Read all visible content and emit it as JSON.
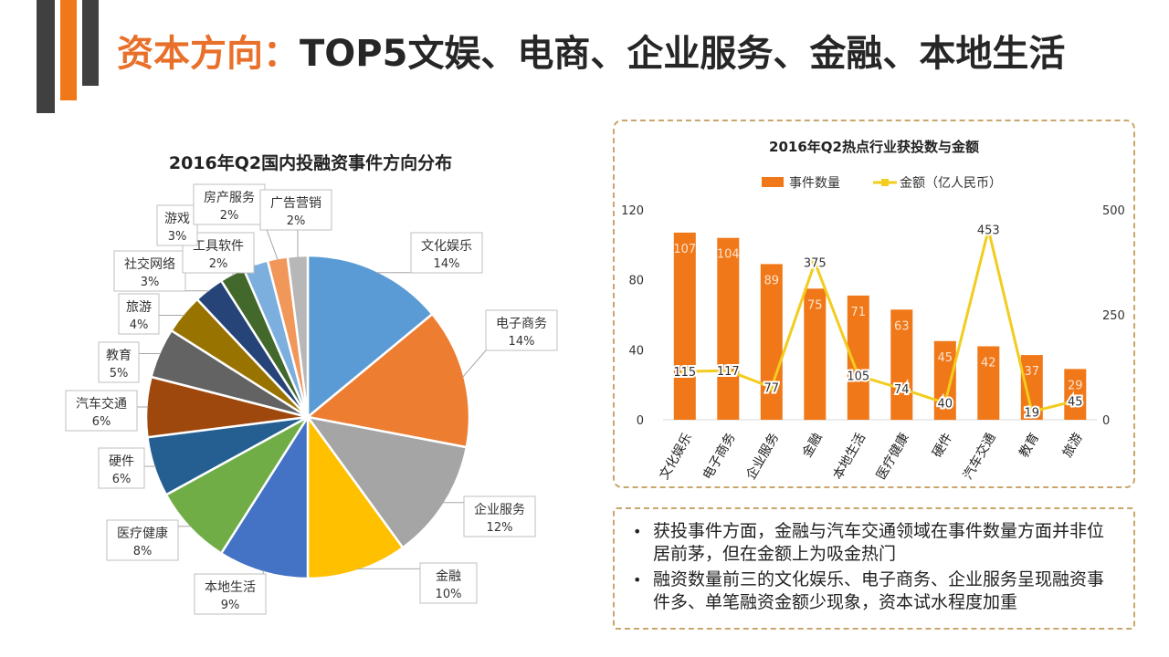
{
  "header": {
    "title_highlight": "资本方向：",
    "title_rest": "TOP5文娱、电商、企业服务、金融、本地生活"
  },
  "colors": {
    "accent": "#f07818",
    "dark": "#404040",
    "line": "#f2cc1e",
    "border": "#c9a66b"
  },
  "chart_data": [
    {
      "type": "pie",
      "title": "2016年Q2国内投融资事件方向分布",
      "slices": [
        {
          "label": "文化娱乐",
          "pct_label": "14%",
          "value": 14,
          "color": "#5b9bd5"
        },
        {
          "label": "电子商务",
          "pct_label": "14%",
          "value": 14,
          "color": "#ed7d31"
        },
        {
          "label": "企业服务",
          "pct_label": "12%",
          "value": 12,
          "color": "#a5a5a5"
        },
        {
          "label": "金融",
          "pct_label": "10%",
          "value": 10,
          "color": "#ffc000"
        },
        {
          "label": "本地生活",
          "pct_label": "9%",
          "value": 9,
          "color": "#4472c4"
        },
        {
          "label": "医疗健康",
          "pct_label": "8%",
          "value": 8,
          "color": "#70ad47"
        },
        {
          "label": "硬件",
          "pct_label": "6%",
          "value": 6,
          "color": "#255e91"
        },
        {
          "label": "汽车交通",
          "pct_label": "6%",
          "value": 6,
          "color": "#9e480e"
        },
        {
          "label": "教育",
          "pct_label": "5%",
          "value": 5,
          "color": "#636363"
        },
        {
          "label": "旅游",
          "pct_label": "4%",
          "value": 4,
          "color": "#997300"
        },
        {
          "label": "社交网络",
          "pct_label": "3%",
          "value": 3,
          "color": "#264478"
        },
        {
          "label": "工具软件",
          "pct_label": "2%",
          "value": 2.5,
          "color": "#43682b"
        },
        {
          "label": "游戏",
          "pct_label": "3%",
          "value": 2.5,
          "color": "#7cafdd"
        },
        {
          "label": "房产服务",
          "pct_label": "2%",
          "value": 2,
          "color": "#f1975a"
        },
        {
          "label": "广告营销",
          "pct_label": "2%",
          "value": 2,
          "color": "#b7b7b7"
        }
      ]
    },
    {
      "type": "bar+line",
      "title": "2016年Q2热点行业获投数与金额",
      "categories": [
        "文化娱乐",
        "电子商务",
        "企业服务",
        "金融",
        "本地生活",
        "医疗健康",
        "硬件",
        "汽车交通",
        "教育",
        "旅游"
      ],
      "series": [
        {
          "name": "事件数量",
          "type": "bar",
          "axis": "left",
          "values": [
            107,
            104,
            89,
            75,
            71,
            63,
            45,
            42,
            37,
            29
          ]
        },
        {
          "name": "金额（亿人民币）",
          "type": "line",
          "axis": "right",
          "values": [
            115,
            117,
            77,
            375,
            105,
            74,
            40,
            453,
            19,
            45
          ]
        }
      ],
      "y_left": {
        "min": 0,
        "max": 120,
        "ticks": [
          0,
          40,
          80,
          120
        ]
      },
      "y_right": {
        "min": 0,
        "max": 500,
        "ticks": [
          0,
          250,
          500
        ]
      },
      "legend": "top-center"
    }
  ],
  "notes": [
    "获投事件方面，金融与汽车交通领域在事件数量方面并非位居前茅，但在金额上为吸金热门",
    "融资数量前三的文化娱乐、电子商务、企业服务呈现融资事件多、单笔融资金额少现象，资本试水程度加重"
  ]
}
